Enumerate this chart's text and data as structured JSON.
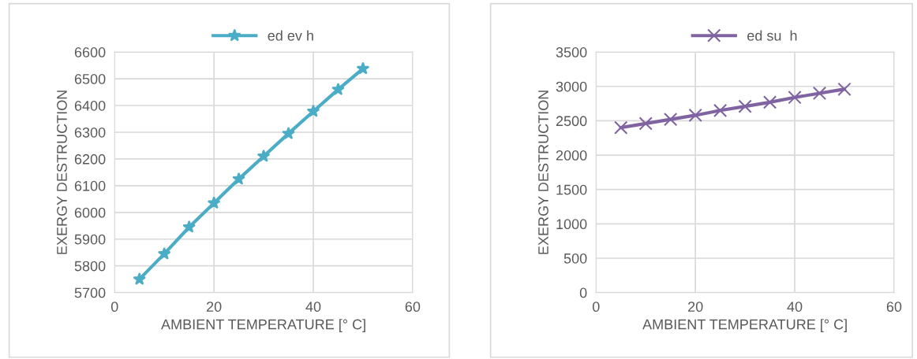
{
  "chart_data": [
    {
      "type": "line",
      "xlabel": "AMBIENT TEMPERATURE [° C]",
      "ylabel": "EXERGY DESTRUCTION",
      "x": [
        5,
        10,
        15,
        20,
        25,
        30,
        35,
        40,
        45,
        50
      ],
      "series": [
        {
          "name": "ed ev h",
          "color": "#4bacc6",
          "values": [
            5750,
            5845,
            5945,
            6035,
            6125,
            6210,
            6295,
            6378,
            6460,
            6538
          ]
        }
      ],
      "xlim": [
        0,
        60
      ],
      "xticks": [
        0,
        20,
        40,
        60
      ],
      "ylim": [
        5700,
        6600
      ],
      "yticks": [
        5700,
        5800,
        5900,
        6000,
        6100,
        6200,
        6300,
        6400,
        6500,
        6600
      ],
      "grid": true,
      "legend": "top",
      "marker": "star",
      "line_style": "solid"
    },
    {
      "type": "line",
      "xlabel": "AMBIENT TEMPERATURE [° C]",
      "ylabel": "EXERGY DESTRUCTION",
      "x": [
        5,
        10,
        15,
        20,
        25,
        30,
        35,
        40,
        45,
        50
      ],
      "series": [
        {
          "name": "ed su  h",
          "color": "#8064a2",
          "values": [
            2400,
            2460,
            2520,
            2580,
            2650,
            2710,
            2770,
            2840,
            2900,
            2960
          ]
        }
      ],
      "xlim": [
        0,
        60
      ],
      "xticks": [
        0,
        20,
        40,
        60
      ],
      "ylim": [
        0,
        3500
      ],
      "yticks": [
        0,
        500,
        1000,
        1500,
        2000,
        2500,
        3000,
        3500
      ],
      "grid": true,
      "legend": "top",
      "marker": "cross",
      "line_style": "solid"
    }
  ]
}
